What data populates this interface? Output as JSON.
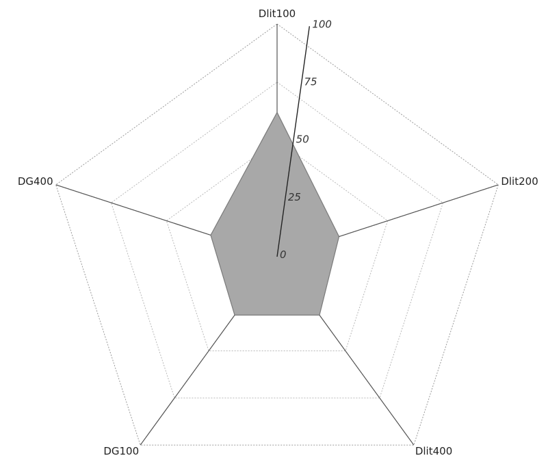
{
  "chart_data": {
    "type": "radar",
    "categories": [
      "Dlit100",
      "Dlit200",
      "Dlit400",
      "DG100",
      "DG400"
    ],
    "series": [
      {
        "values": [
          62,
          28,
          31,
          31,
          30
        ]
      }
    ],
    "rlim": [
      0,
      100
    ],
    "ticks": [
      "0",
      "25",
      "50",
      "75",
      "100"
    ],
    "grid": true,
    "legend": "none",
    "colors": {
      "fill": "#a8a8a8",
      "stroke": "#7a7a7a",
      "grid": "#b8b8b8",
      "axis": "#222222"
    }
  }
}
